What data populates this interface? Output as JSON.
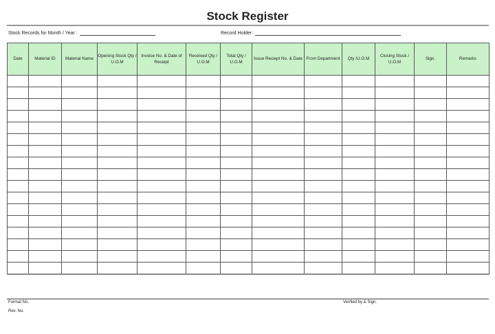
{
  "title": "Stock Register",
  "fields": {
    "month_year_label": "Stock Records for Month / Year :",
    "month_year_value": "",
    "record_holder_label": "Record Holder:",
    "record_holder_value": ""
  },
  "table": {
    "columns": [
      "Date",
      "Material ID",
      "Material Name",
      "Opening Stock Qty / U.O.M",
      "Invoice No. & Date of Receipt",
      "Received Qty / U.O.M",
      "Total Qty / U.O.M",
      "Issue Reciept No. & Date",
      "From Department",
      "Qty /U.O.M",
      "Closing Stock / U.O.M",
      "Sign.",
      "Remarks"
    ],
    "row_count": 17
  },
  "header_color": "#c9f2c9",
  "footer": {
    "format_no": "Format No.",
    "rev_no": "Rev. No.",
    "verified": "Verified by  & Sign."
  }
}
